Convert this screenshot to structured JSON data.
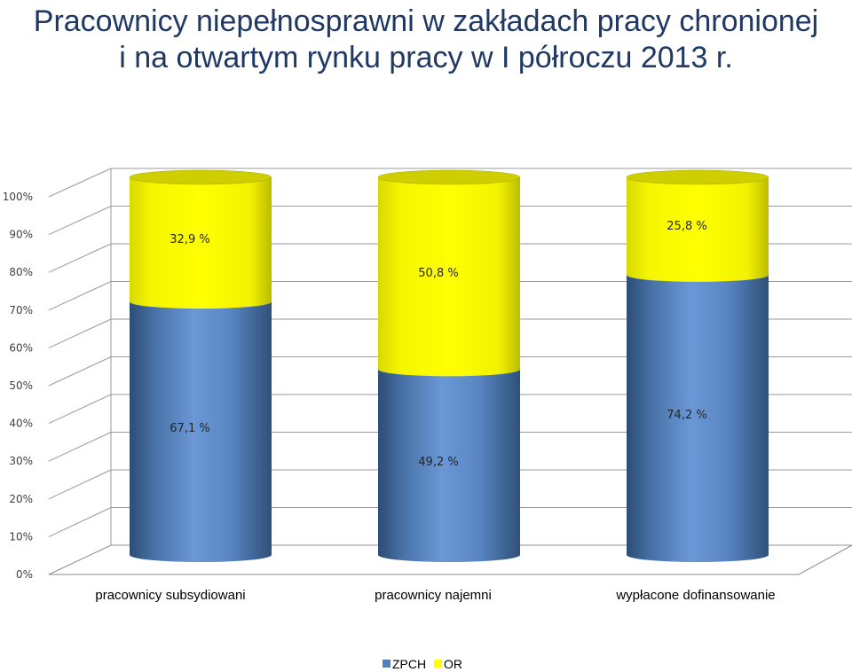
{
  "title_line1": "Pracownicy niepełnosprawni w zakładach pracy chronionej",
  "title_line2": "i na otwartym rynku pracy w I półroczu 2013 r.",
  "chart_data": {
    "type": "bar",
    "stacked": true,
    "three_d": true,
    "bar_shape": "cylinder",
    "categories": [
      "pracownicy subsydiowani",
      "pracownicy najemni",
      "wypłacone dofinansowanie"
    ],
    "series": [
      {
        "name": "ZPCH",
        "values": [
          67.1,
          49.2,
          74.2
        ],
        "labels": [
          "67,1 %",
          "49,2 %",
          "74,2 %"
        ],
        "color": "#4f81bd"
      },
      {
        "name": "OR",
        "values": [
          32.9,
          50.8,
          25.8
        ],
        "labels": [
          "32,9 %",
          "50,8 %",
          "25,8 %"
        ],
        "color": "#ffff00"
      }
    ],
    "yticks": [
      "0%",
      "10%",
      "20%",
      "30%",
      "40%",
      "50%",
      "60%",
      "70%",
      "80%",
      "90%",
      "100%"
    ],
    "ylim": [
      0,
      100
    ],
    "grid": true,
    "legend_position": "bottom"
  }
}
